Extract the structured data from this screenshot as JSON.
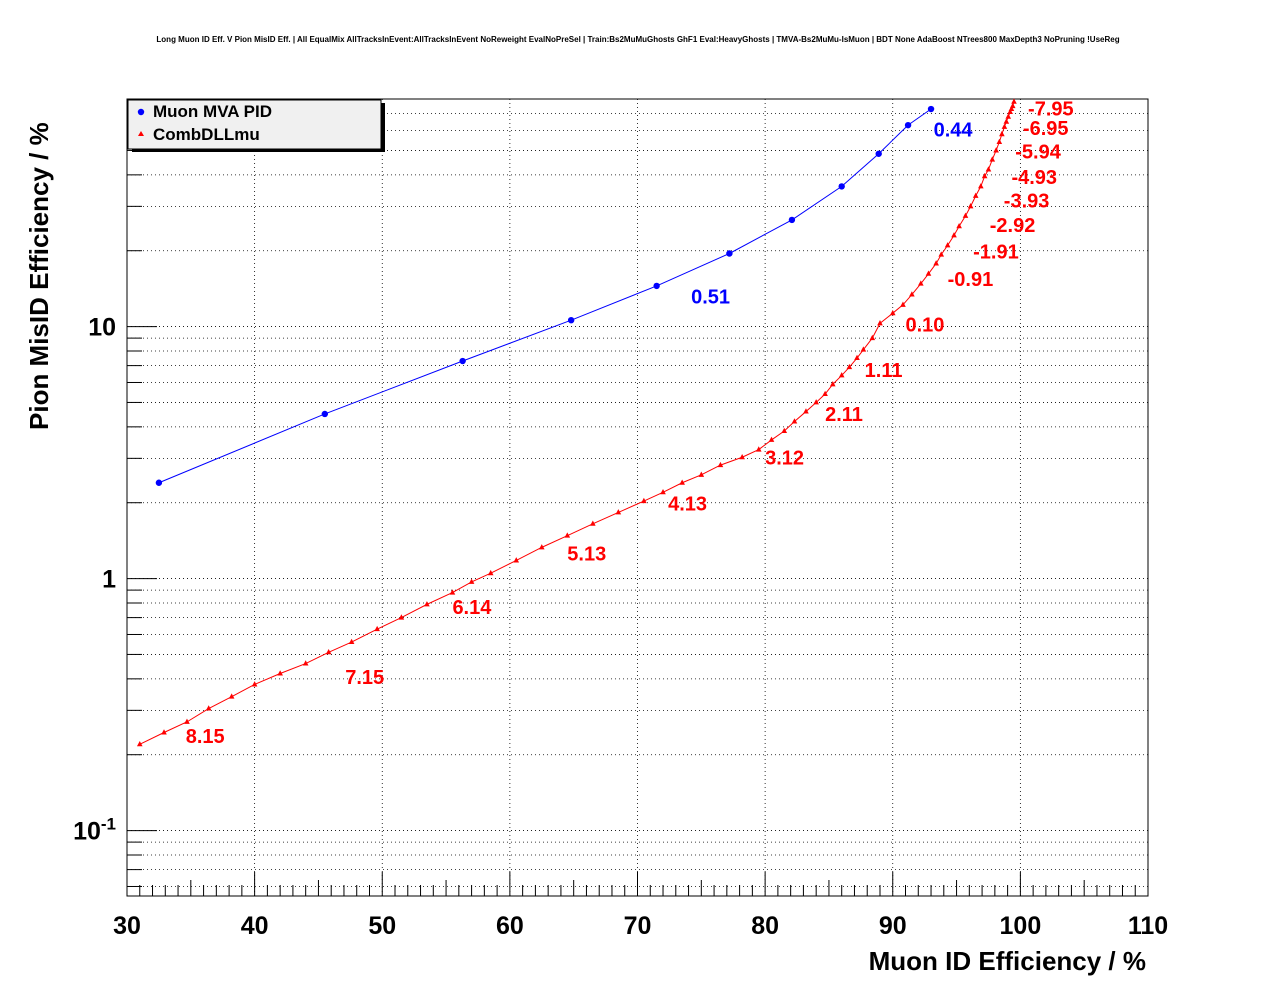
{
  "chart_data": {
    "type": "line",
    "title": "Long Muon ID Eff. V Pion MisID Eff. | All EqualMix AllTracksInEvent:AllTracksInEvent NoReweight EvalNoPreSel | Train:Bs2MuMuGhosts GhF1 Eval:HeavyGhosts | TMVA-Bs2MuMu-IsMuon | BDT None AdaBoost NTrees800 MaxDepth3 NoPruning !UseReg",
    "xlabel": "Muon ID Efficiency / %",
    "ylabel": "Pion MisID Efficiency / %",
    "xlim": [
      30,
      110
    ],
    "ylim": [
      0.055,
      80
    ],
    "yscale": "log",
    "grid": true,
    "legend_position": "top-left",
    "x_ticks": [
      "30",
      "40",
      "50",
      "60",
      "70",
      "80",
      "90",
      "100",
      "110"
    ],
    "y_ticks": [
      {
        "value": 0.1,
        "base": "10",
        "exp": "-1"
      },
      {
        "value": 1,
        "base": "1",
        "exp": ""
      },
      {
        "value": 10,
        "base": "10",
        "exp": ""
      }
    ],
    "series": [
      {
        "name": "Muon MVA PID",
        "color": "#0000ff",
        "marker": "circle",
        "x": [
          32.5,
          45.5,
          56.3,
          64.8,
          71.5,
          77.2,
          82.1,
          86.0,
          88.9,
          91.2,
          93.0
        ],
        "y": [
          2.4,
          4.5,
          7.3,
          10.6,
          14.5,
          19.5,
          26.5,
          36.0,
          48.5,
          63.0,
          73.0
        ]
      },
      {
        "name": "CombDLLmu",
        "color": "#ff0000",
        "marker": "triangle",
        "x": [
          31.0,
          32.9,
          34.7,
          36.4,
          38.2,
          40.0,
          42.0,
          44.0,
          45.8,
          47.6,
          49.6,
          51.5,
          53.5,
          55.5,
          57.0,
          58.5,
          60.5,
          62.5,
          64.5,
          66.5,
          68.5,
          70.5,
          72.0,
          73.5,
          75.0,
          76.5,
          78.2,
          79.5,
          80.5,
          81.5,
          82.3,
          83.2,
          84.0,
          84.7,
          85.3,
          86.0,
          86.6,
          87.2,
          87.7,
          88.4,
          89.0,
          90.0,
          90.8,
          91.5,
          92.2,
          92.8,
          93.4,
          93.8,
          94.3,
          94.8,
          95.2,
          95.7,
          96.1,
          96.5,
          96.9,
          97.2,
          97.5,
          97.8,
          98.1,
          98.35,
          98.55,
          98.75,
          98.9,
          99.05,
          99.2,
          99.3,
          99.4,
          99.5
        ],
        "y": [
          0.22,
          0.245,
          0.27,
          0.305,
          0.34,
          0.38,
          0.42,
          0.46,
          0.51,
          0.56,
          0.63,
          0.7,
          0.79,
          0.88,
          0.97,
          1.05,
          1.18,
          1.33,
          1.48,
          1.65,
          1.83,
          2.03,
          2.2,
          2.4,
          2.58,
          2.82,
          3.03,
          3.25,
          3.55,
          3.85,
          4.2,
          4.6,
          5.0,
          5.4,
          5.9,
          6.4,
          6.9,
          7.5,
          8.1,
          9.0,
          10.3,
          11.3,
          12.2,
          13.4,
          14.8,
          16.2,
          17.8,
          19.3,
          21.0,
          23.0,
          25.0,
          27.5,
          30.0,
          33.0,
          36.0,
          39.5,
          42.0,
          46.0,
          50.0,
          54.0,
          58.0,
          62.0,
          65.0,
          68.0,
          71.0,
          73.0,
          75.0,
          78.0
        ]
      }
    ],
    "annotations": [
      {
        "text": "0.44",
        "x": 93.2,
        "y": 61.0,
        "color": "#0000ff"
      },
      {
        "text": "0.51",
        "x": 74.2,
        "y": 13.3,
        "color": "#0000ff"
      },
      {
        "text": "-7.95",
        "x": 100.6,
        "y": 74.0,
        "color": "#ff0000"
      },
      {
        "text": "-6.95",
        "x": 100.2,
        "y": 62.0,
        "color": "#ff0000"
      },
      {
        "text": "-5.94",
        "x": 99.6,
        "y": 50.0,
        "color": "#ff0000"
      },
      {
        "text": "-4.93",
        "x": 99.3,
        "y": 39.5,
        "color": "#ff0000"
      },
      {
        "text": "-3.93",
        "x": 98.7,
        "y": 32.0,
        "color": "#ff0000"
      },
      {
        "text": "-2.92",
        "x": 97.6,
        "y": 25.5,
        "color": "#ff0000"
      },
      {
        "text": "-1.91",
        "x": 96.3,
        "y": 20.0,
        "color": "#ff0000"
      },
      {
        "text": "-0.91",
        "x": 94.3,
        "y": 15.6,
        "color": "#ff0000"
      },
      {
        "text": "0.10",
        "x": 91.0,
        "y": 10.3,
        "color": "#ff0000"
      },
      {
        "text": "1.11",
        "x": 87.8,
        "y": 6.8,
        "color": "#ff0000"
      },
      {
        "text": "2.11",
        "x": 84.7,
        "y": 4.55,
        "color": "#ff0000"
      },
      {
        "text": "3.12",
        "x": 80.0,
        "y": 3.05,
        "color": "#ff0000"
      },
      {
        "text": "4.13",
        "x": 72.4,
        "y": 2.0,
        "color": "#ff0000"
      },
      {
        "text": "5.13",
        "x": 64.5,
        "y": 1.27,
        "color": "#ff0000"
      },
      {
        "text": "6.14",
        "x": 55.5,
        "y": 0.78,
        "color": "#ff0000"
      },
      {
        "text": "7.15",
        "x": 47.1,
        "y": 0.41,
        "color": "#ff0000"
      },
      {
        "text": "8.15",
        "x": 34.6,
        "y": 0.24,
        "color": "#ff0000"
      }
    ]
  }
}
